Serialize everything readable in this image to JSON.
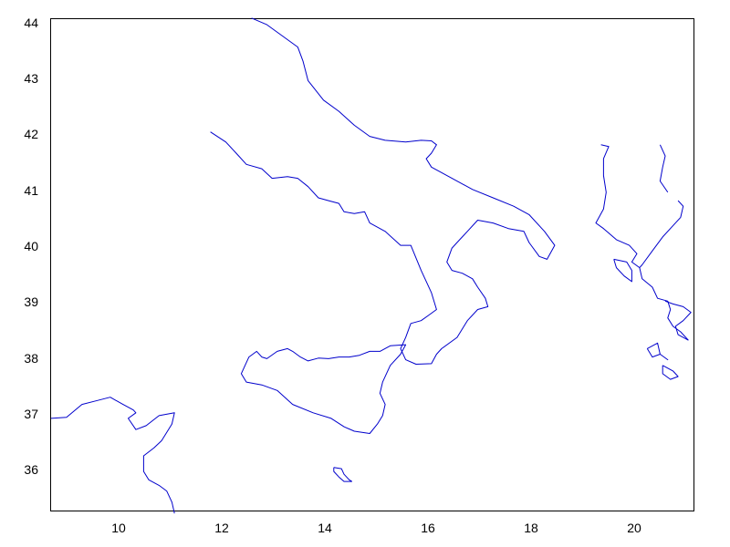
{
  "chart_data": {
    "type": "map",
    "title": "",
    "xlabel": "",
    "ylabel": "",
    "xlim": [
      8.7,
      21.2
    ],
    "ylim": [
      35.3,
      44.1
    ],
    "x_ticks": [
      "10",
      "12",
      "14",
      "16",
      "18",
      "20"
    ],
    "y_ticks": [
      "36",
      "37",
      "38",
      "39",
      "40",
      "41",
      "42",
      "43",
      "44"
    ],
    "grid": false,
    "coastline_color": "#0000cc",
    "features": [
      {
        "name": "italy-tyrrhenian-coast",
        "coords": [
          [
            11.8,
            42.08
          ],
          [
            12.1,
            41.9
          ],
          [
            12.3,
            41.7
          ],
          [
            12.5,
            41.5
          ],
          [
            12.8,
            41.42
          ],
          [
            13.0,
            41.25
          ],
          [
            13.3,
            41.28
          ],
          [
            13.5,
            41.25
          ],
          [
            13.7,
            41.1
          ],
          [
            13.9,
            40.9
          ],
          [
            14.1,
            40.85
          ],
          [
            14.3,
            40.8
          ],
          [
            14.4,
            40.65
          ],
          [
            14.6,
            40.62
          ],
          [
            14.8,
            40.65
          ],
          [
            14.9,
            40.45
          ],
          [
            15.2,
            40.3
          ],
          [
            15.5,
            40.05
          ],
          [
            15.7,
            40.05
          ],
          [
            15.9,
            39.6
          ],
          [
            16.1,
            39.2
          ],
          [
            16.2,
            38.9
          ],
          [
            16.05,
            38.8
          ],
          [
            15.9,
            38.7
          ],
          [
            15.7,
            38.65
          ],
          [
            15.6,
            38.4
          ],
          [
            15.5,
            38.2
          ],
          [
            15.6,
            38.0
          ],
          [
            15.8,
            37.92
          ],
          [
            16.1,
            37.93
          ],
          [
            16.2,
            38.1
          ],
          [
            16.3,
            38.2
          ],
          [
            16.6,
            38.4
          ],
          [
            16.8,
            38.7
          ],
          [
            17.0,
            38.9
          ],
          [
            17.2,
            38.95
          ],
          [
            17.15,
            39.1
          ],
          [
            17.0,
            39.3
          ],
          [
            16.9,
            39.45
          ],
          [
            16.7,
            39.55
          ],
          [
            16.5,
            39.6
          ],
          [
            16.4,
            39.75
          ],
          [
            16.5,
            40.0
          ],
          [
            16.6,
            40.1
          ],
          [
            16.8,
            40.3
          ],
          [
            17.0,
            40.5
          ],
          [
            17.3,
            40.45
          ],
          [
            17.6,
            40.35
          ],
          [
            17.9,
            40.3
          ],
          [
            18.0,
            40.1
          ],
          [
            18.2,
            39.85
          ],
          [
            18.35,
            39.8
          ],
          [
            18.5,
            40.05
          ],
          [
            18.3,
            40.3
          ],
          [
            18.0,
            40.6
          ],
          [
            17.7,
            40.75
          ],
          [
            17.3,
            40.9
          ],
          [
            16.9,
            41.05
          ],
          [
            16.5,
            41.25
          ],
          [
            16.1,
            41.45
          ],
          [
            16.0,
            41.6
          ],
          [
            16.1,
            41.7
          ],
          [
            16.2,
            41.85
          ],
          [
            16.1,
            41.92
          ],
          [
            15.9,
            41.93
          ],
          [
            15.6,
            41.9
          ],
          [
            15.2,
            41.93
          ],
          [
            14.9,
            42.0
          ],
          [
            14.6,
            42.2
          ],
          [
            14.3,
            42.45
          ],
          [
            14.0,
            42.65
          ],
          [
            13.7,
            43.0
          ],
          [
            13.6,
            43.35
          ],
          [
            13.5,
            43.6
          ],
          [
            13.2,
            43.8
          ],
          [
            12.9,
            44.0
          ],
          [
            12.6,
            44.12
          ]
        ]
      },
      {
        "name": "sicily-coast",
        "coords": [
          [
            12.45,
            37.85
          ],
          [
            12.55,
            38.05
          ],
          [
            12.7,
            38.15
          ],
          [
            12.8,
            38.05
          ],
          [
            12.9,
            38.02
          ],
          [
            13.1,
            38.15
          ],
          [
            13.3,
            38.2
          ],
          [
            13.4,
            38.15
          ],
          [
            13.55,
            38.05
          ],
          [
            13.7,
            37.98
          ],
          [
            13.9,
            38.03
          ],
          [
            14.1,
            38.02
          ],
          [
            14.3,
            38.05
          ],
          [
            14.5,
            38.05
          ],
          [
            14.7,
            38.08
          ],
          [
            14.9,
            38.15
          ],
          [
            15.1,
            38.15
          ],
          [
            15.3,
            38.25
          ],
          [
            15.6,
            38.27
          ],
          [
            15.5,
            38.1
          ],
          [
            15.3,
            37.9
          ],
          [
            15.15,
            37.6
          ],
          [
            15.1,
            37.4
          ],
          [
            15.2,
            37.2
          ],
          [
            15.15,
            37.0
          ],
          [
            15.05,
            36.85
          ],
          [
            14.9,
            36.68
          ],
          [
            14.6,
            36.72
          ],
          [
            14.4,
            36.8
          ],
          [
            14.15,
            36.95
          ],
          [
            13.8,
            37.05
          ],
          [
            13.4,
            37.2
          ],
          [
            13.1,
            37.45
          ],
          [
            12.8,
            37.55
          ],
          [
            12.5,
            37.6
          ],
          [
            12.4,
            37.75
          ],
          [
            12.45,
            37.85
          ]
        ]
      },
      {
        "name": "tunisia-algeria-coast",
        "coords": [
          [
            8.7,
            36.95
          ],
          [
            9.0,
            36.97
          ],
          [
            9.3,
            37.2
          ],
          [
            9.6,
            37.27
          ],
          [
            9.85,
            37.33
          ],
          [
            10.1,
            37.2
          ],
          [
            10.3,
            37.1
          ],
          [
            10.35,
            37.05
          ],
          [
            10.2,
            36.95
          ],
          [
            10.35,
            36.75
          ],
          [
            10.55,
            36.82
          ],
          [
            10.8,
            37.0
          ],
          [
            11.1,
            37.05
          ],
          [
            11.05,
            36.85
          ],
          [
            10.85,
            36.55
          ],
          [
            10.7,
            36.42
          ],
          [
            10.5,
            36.28
          ],
          [
            10.5,
            36.0
          ],
          [
            10.6,
            35.85
          ],
          [
            10.8,
            35.75
          ],
          [
            10.95,
            35.65
          ],
          [
            11.05,
            35.45
          ],
          [
            11.1,
            35.25
          ]
        ]
      },
      {
        "name": "malta",
        "coords": [
          [
            14.2,
            36.07
          ],
          [
            14.35,
            36.05
          ],
          [
            14.4,
            35.95
          ],
          [
            14.5,
            35.85
          ],
          [
            14.55,
            35.82
          ],
          [
            14.4,
            35.82
          ],
          [
            14.3,
            35.9
          ],
          [
            14.2,
            36.0
          ],
          [
            14.2,
            36.07
          ]
        ]
      },
      {
        "name": "albania-greece-coast",
        "coords": [
          [
            19.4,
            41.85
          ],
          [
            19.55,
            41.82
          ],
          [
            19.45,
            41.6
          ],
          [
            19.45,
            41.3
          ],
          [
            19.5,
            41.0
          ],
          [
            19.45,
            40.7
          ],
          [
            19.3,
            40.45
          ],
          [
            19.45,
            40.35
          ],
          [
            19.7,
            40.15
          ],
          [
            19.95,
            40.05
          ],
          [
            20.1,
            39.9
          ],
          [
            20.0,
            39.75
          ],
          [
            20.15,
            39.65
          ],
          [
            20.2,
            39.45
          ],
          [
            20.4,
            39.3
          ],
          [
            20.5,
            39.1
          ],
          [
            20.7,
            39.05
          ],
          [
            20.75,
            38.9
          ],
          [
            20.7,
            38.75
          ],
          [
            20.8,
            38.6
          ],
          [
            20.95,
            38.5
          ],
          [
            21.1,
            38.35
          ]
        ]
      },
      {
        "name": "greece-mainland-west",
        "coords": [
          [
            20.55,
            41.85
          ],
          [
            20.65,
            41.65
          ],
          [
            20.6,
            41.45
          ],
          [
            20.55,
            41.2
          ],
          [
            20.7,
            41.0
          ]
        ]
      },
      {
        "name": "corfu",
        "coords": [
          [
            19.65,
            39.8
          ],
          [
            19.9,
            39.75
          ],
          [
            20.0,
            39.6
          ],
          [
            20.0,
            39.4
          ],
          [
            19.85,
            39.5
          ],
          [
            19.7,
            39.65
          ],
          [
            19.65,
            39.8
          ]
        ]
      },
      {
        "name": "lefkada-kefalonia",
        "coords": [
          [
            20.3,
            38.2
          ],
          [
            20.5,
            38.3
          ],
          [
            20.55,
            38.1
          ],
          [
            20.7,
            38.0
          ],
          [
            20.55,
            38.1
          ],
          [
            20.4,
            38.05
          ],
          [
            20.3,
            38.2
          ]
        ]
      },
      {
        "name": "zakynthos",
        "coords": [
          [
            20.6,
            37.9
          ],
          [
            20.8,
            37.8
          ],
          [
            20.9,
            37.7
          ],
          [
            20.75,
            37.65
          ],
          [
            20.6,
            37.75
          ],
          [
            20.6,
            37.9
          ]
        ]
      },
      {
        "name": "greece-east-coast",
        "coords": [
          [
            20.9,
            40.85
          ],
          [
            21.0,
            40.75
          ],
          [
            20.95,
            40.55
          ],
          [
            20.8,
            40.4
          ],
          [
            20.6,
            40.2
          ],
          [
            20.4,
            39.95
          ],
          [
            20.2,
            39.7
          ],
          [
            20.15,
            39.65
          ]
        ]
      },
      {
        "name": "aegean-west-coast",
        "coords": [
          [
            20.65,
            39.05
          ],
          [
            20.8,
            39.0
          ],
          [
            21.0,
            38.95
          ],
          [
            21.15,
            38.85
          ],
          [
            21.0,
            38.7
          ],
          [
            20.85,
            38.6
          ],
          [
            20.9,
            38.45
          ],
          [
            21.1,
            38.35
          ]
        ]
      }
    ]
  }
}
